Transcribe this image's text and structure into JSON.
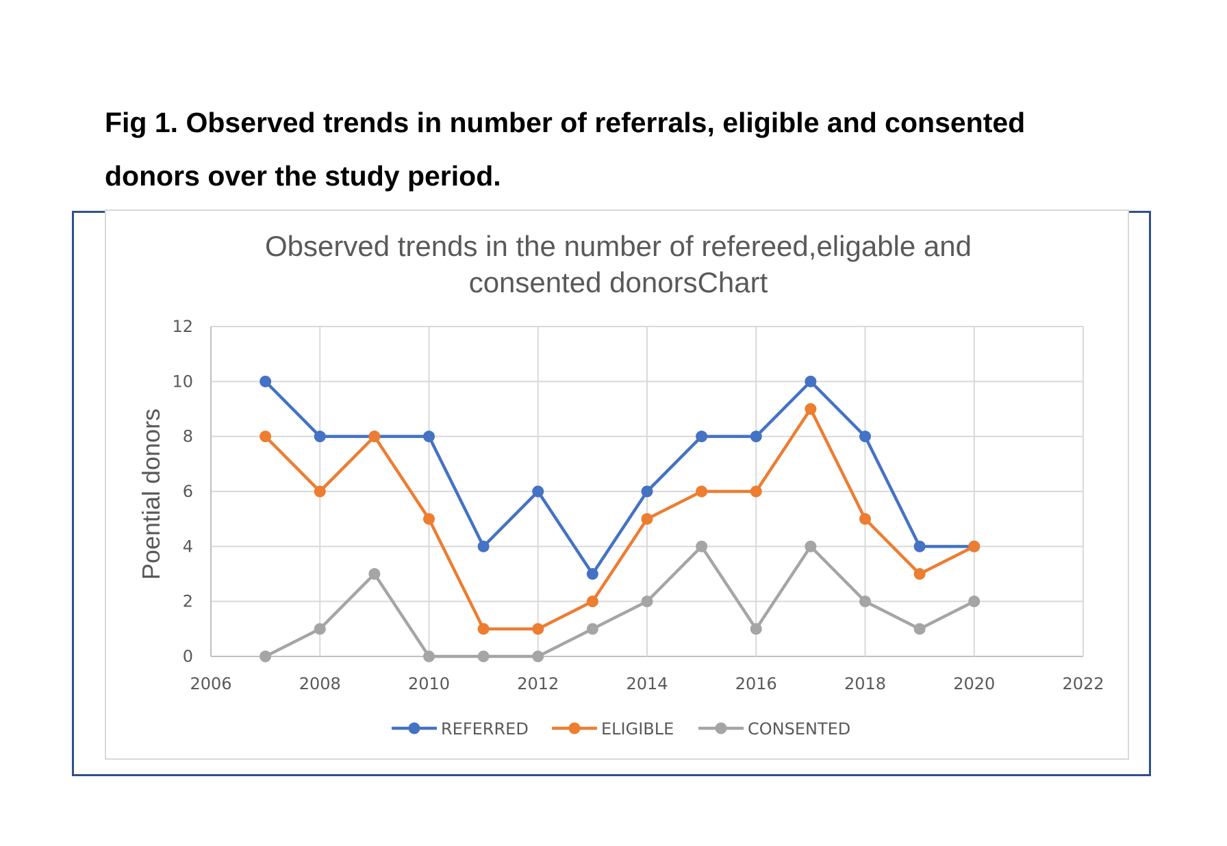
{
  "caption": {
    "line1": "Fig 1. Observed trends in number of referrals, eligible and consented",
    "line2": "donors over the study period."
  },
  "chart_data": {
    "type": "line",
    "title_line1": "Observed trends in the number of refereed,eligable and",
    "title_line2": "consented donorsChart",
    "xlabel": "",
    "ylabel": "Poential donors",
    "xlim": [
      2006,
      2022
    ],
    "ylim": [
      0,
      12
    ],
    "xticks": [
      2006,
      2008,
      2010,
      2012,
      2014,
      2016,
      2018,
      2020,
      2022
    ],
    "yticks": [
      0,
      2,
      4,
      6,
      8,
      10,
      12
    ],
    "grid": true,
    "legend_position": "bottom",
    "x": [
      2007,
      2008,
      2009,
      2010,
      2011,
      2012,
      2013,
      2014,
      2015,
      2016,
      2017,
      2018,
      2019,
      2020
    ],
    "series": [
      {
        "name": "REFERRED",
        "color": "#4472c4",
        "values": [
          10,
          8,
          8,
          8,
          4,
          6,
          3,
          6,
          8,
          8,
          10,
          8,
          4,
          4
        ]
      },
      {
        "name": "ELIGIBLE",
        "color": "#ed7d31",
        "values": [
          8,
          6,
          8,
          5,
          1,
          1,
          2,
          5,
          6,
          6,
          9,
          5,
          3,
          4
        ]
      },
      {
        "name": "CONSENTED",
        "color": "#a5a5a5",
        "values": [
          0,
          1,
          3,
          0,
          0,
          0,
          1,
          2,
          4,
          1,
          4,
          2,
          1,
          2
        ]
      }
    ]
  }
}
